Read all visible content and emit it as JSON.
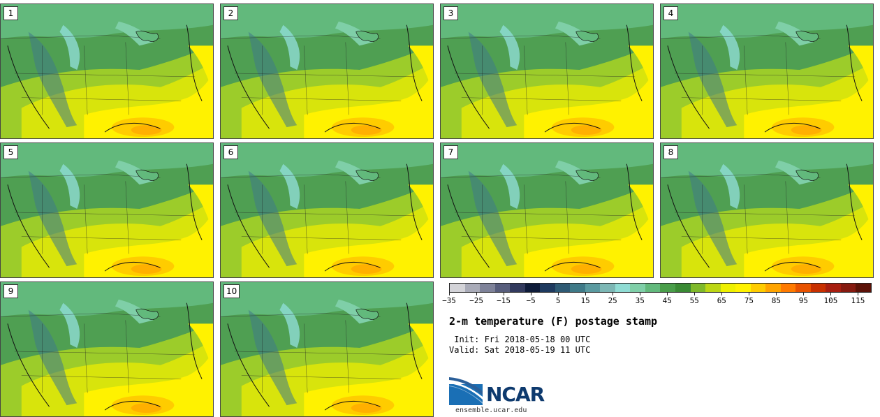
{
  "title": "2-m temperature (F) postage stamp",
  "init_line": " Init: Fri 2018-05-18 00 UTC",
  "valid_line": "Valid: Sat 2018-05-19 11 UTC",
  "logo": {
    "name": "NCAR",
    "icon": "ncar-logo-icon",
    "website": "ensemble.ucar.edu"
  },
  "members": [
    {
      "label": "1"
    },
    {
      "label": "2"
    },
    {
      "label": "3"
    },
    {
      "label": "4"
    },
    {
      "label": "5"
    },
    {
      "label": "6"
    },
    {
      "label": "7"
    },
    {
      "label": "8"
    },
    {
      "label": "9"
    },
    {
      "label": "10"
    }
  ],
  "colorbar": {
    "min": -35,
    "max": 120,
    "step": 5,
    "tick_labels": [
      "-35",
      "-25",
      "-15",
      "-5",
      "5",
      "15",
      "25",
      "35",
      "45",
      "55",
      "65",
      "75",
      "85",
      "95",
      "105",
      "115"
    ],
    "tick_values": [
      -35,
      -25,
      -15,
      -5,
      5,
      15,
      25,
      35,
      45,
      55,
      65,
      75,
      85,
      95,
      105,
      115
    ],
    "colors": [
      "#d3d3d8",
      "#a9abb8",
      "#7e8299",
      "#575d7c",
      "#323a5e",
      "#0f1c3a",
      "#1e3a5f",
      "#2e5a74",
      "#3f7a88",
      "#5a9aa0",
      "#7cb7b5",
      "#8fdcd4",
      "#7fcfa8",
      "#62b97c",
      "#4a9e4a",
      "#3a8a34",
      "#7fb92a",
      "#bcd614",
      "#eef000",
      "#fff200",
      "#ffcc00",
      "#ffa400",
      "#ff7a00",
      "#e85200",
      "#c83000",
      "#a81e10",
      "#861a10",
      "#5c1208"
    ]
  }
}
